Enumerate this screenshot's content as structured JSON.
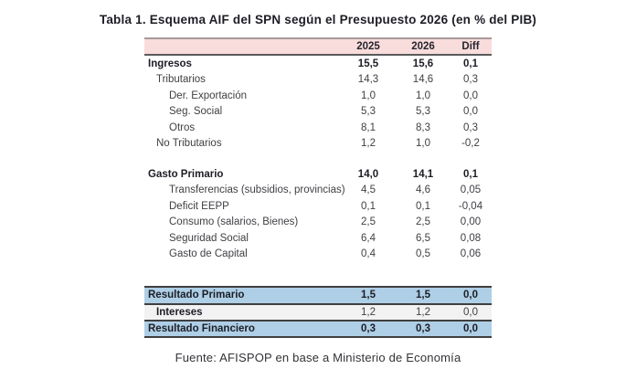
{
  "title": "Tabla 1. Esquema AIF del SPN según el Presupuesto 2026 (en % del PIB)",
  "source_note": "Fuente: AFISPOP en base a Ministerio de Economía",
  "colors": {
    "header_bg": "#f9dcdc",
    "header_top_border": "#a8989a",
    "highlight_blue": "#aecfe6",
    "highlight_gray": "#f2f2f2",
    "dark_border": "#3f3f3f"
  },
  "table": {
    "columns": [
      "2025",
      "2026",
      "Diff"
    ],
    "rows": [
      {
        "label": "Ingresos",
        "level": 0,
        "bold_label": true,
        "bold_values": true,
        "values": [
          "15,5",
          "15,6",
          "0,1"
        ]
      },
      {
        "label": "Tributarios",
        "level": 1,
        "values": [
          "14,3",
          "14,6",
          "0,3"
        ]
      },
      {
        "label": "Der. Exportación",
        "level": 2,
        "values": [
          "1,0",
          "1,0",
          "0,0"
        ]
      },
      {
        "label": "Seg. Social",
        "level": 2,
        "values": [
          "5,3",
          "5,3",
          "0,0"
        ]
      },
      {
        "label": "Otros",
        "level": 2,
        "values": [
          "8,1",
          "8,3",
          "0,3"
        ]
      },
      {
        "label": "No Tributarios",
        "level": 1,
        "values": [
          "1,2",
          "1,0",
          "-0,2"
        ]
      },
      {
        "spacer": true
      },
      {
        "label": "Gasto Primario",
        "level": 0,
        "bold_label": true,
        "bold_values": true,
        "values": [
          "14,0",
          "14,1",
          "0,1"
        ]
      },
      {
        "label": "Transferencias (subsidios, provincias)",
        "level": 2,
        "values": [
          "4,5",
          "4,6",
          "0,05"
        ]
      },
      {
        "label": "Deficit EEPP",
        "level": 2,
        "values": [
          "0,1",
          "0,1",
          "-0,04"
        ]
      },
      {
        "label": "Consumo (salarios, Bienes)",
        "level": 2,
        "values": [
          "2,5",
          "2,5",
          "0,00"
        ]
      },
      {
        "label": "Seguridad Social",
        "level": 2,
        "values": [
          "6,4",
          "6,5",
          "0,08"
        ]
      },
      {
        "label": "Gasto de Capital",
        "level": 2,
        "values": [
          "0,4",
          "0,5",
          "0,06"
        ]
      },
      {
        "spacer": true,
        "tall": true
      },
      {
        "label": "Resultado Primario",
        "level": 0,
        "bold_label": true,
        "bold_values": true,
        "highlight": "blue",
        "values": [
          "1,5",
          "1,5",
          "0,0"
        ]
      },
      {
        "label": "Intereses",
        "level": 1,
        "bold_label": true,
        "bold_values": false,
        "highlight": "gray",
        "values": [
          "1,2",
          "1,2",
          "0,0"
        ]
      },
      {
        "label": "Resultado Financiero",
        "level": 0,
        "bold_label": true,
        "bold_values": true,
        "highlight": "blue",
        "values": [
          "0,3",
          "0,3",
          "0,0"
        ]
      }
    ]
  }
}
